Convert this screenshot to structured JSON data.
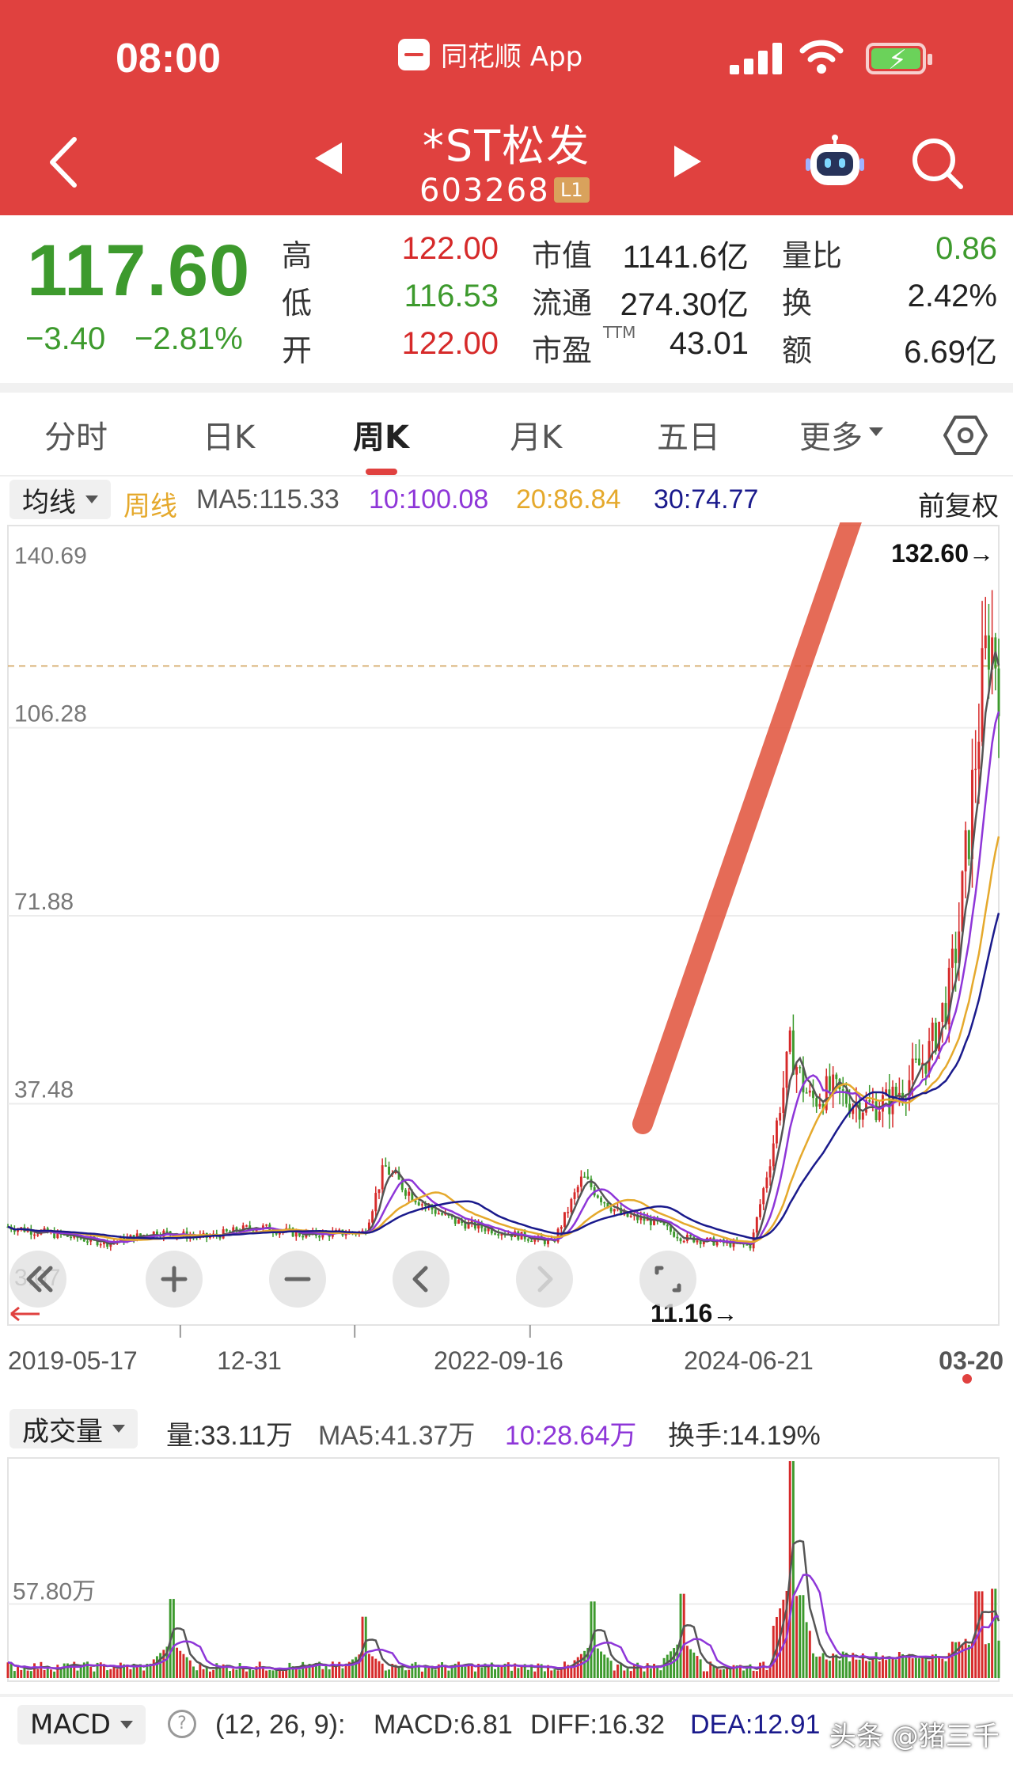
{
  "status": {
    "time": "08:00",
    "app": "同花顺 App"
  },
  "header": {
    "name": "*ST松发",
    "code": "603268",
    "level": "L1"
  },
  "quote": {
    "price": "117.60",
    "change": "−3.40",
    "change_pct": "−2.81%",
    "rows": [
      {
        "l1": "高",
        "v1": "122.00",
        "c1": "red",
        "l2": "市值",
        "v2": "1141.6亿",
        "l3": "量比",
        "v3": "0.86",
        "c3": "green"
      },
      {
        "l1": "低",
        "v1": "116.53",
        "c1": "green",
        "l2": "流通",
        "v2": "274.30亿",
        "l3": "换",
        "v3": "2.42%",
        "c3": "dark"
      },
      {
        "l1": "开",
        "v1": "122.00",
        "c1": "red",
        "l2": "市盈",
        "v2": "43.01",
        "l3": "额",
        "v3": "6.69亿",
        "c3": "dark"
      }
    ],
    "ttm": "TTM"
  },
  "tabs": [
    "分时",
    "日K",
    "周K",
    "月K",
    "五日",
    "更多"
  ],
  "active_tab": "周K",
  "kline_bar": {
    "dropdown": "均线",
    "period": "周线",
    "ma5": "MA5:115.33",
    "ma10": "10:100.08",
    "ma20": "20:86.84",
    "ma30": "30:74.77",
    "adjust": "前复权"
  },
  "volume_bar": {
    "dropdown": "成交量",
    "vol": "量:33.11万",
    "ma5": "MA5:41.37万",
    "ma10": "10:28.64万",
    "turnover": "换手:14.19%"
  },
  "macd_bar": {
    "dropdown": "MACD",
    "help": "?",
    "params": "(12, 26, 9):",
    "macd": "MACD:6.81",
    "diff": "DIFF:16.32",
    "dea": "DEA:12.91"
  },
  "watermark": "头条 @猪三千",
  "colors": {
    "up": "#d62a2a",
    "down": "#3d9a2d",
    "ma5": "#555555",
    "ma10": "#8e36d8",
    "ma20": "#e5a92c",
    "ma30": "#1a1a8c",
    "header": "#e0413f"
  },
  "chart_data": [
    {
      "type": "candlestick",
      "title": "",
      "y_ticks": [
        "140.69",
        "106.28",
        "71.88",
        "37.48",
        "3.07"
      ],
      "ylim": [
        3.07,
        140.69
      ],
      "x_ticks": [
        "2019-05-17",
        "12-31",
        "2022-09-16",
        "2024-06-21",
        "03-20"
      ],
      "annotations": {
        "high": "132.60→",
        "low": "11.16→"
      },
      "control_icons": [
        "rewind-icon",
        "zoom-in-icon",
        "zoom-out-icon",
        "chevron-left-icon",
        "chevron-right-icon",
        "fullscreen-icon"
      ],
      "price_profile": {
        "t": [
          0,
          0.05,
          0.1,
          0.15,
          0.2,
          0.25,
          0.3,
          0.36,
          0.38,
          0.4,
          0.42,
          0.45,
          0.5,
          0.55,
          0.58,
          0.6,
          0.62,
          0.65,
          0.68,
          0.72,
          0.75,
          0.77,
          0.79,
          0.8,
          0.81,
          0.83,
          0.85,
          0.87,
          0.89,
          0.91,
          0.93,
          0.95,
          0.96,
          0.97,
          0.98,
          0.99,
          1.0
        ],
        "close": [
          15,
          13.5,
          12,
          14,
          13,
          15,
          13.5,
          14,
          26,
          22,
          19,
          16,
          14,
          12,
          24,
          20,
          17,
          16,
          13,
          12,
          11.5,
          28,
          48,
          42,
          38,
          40,
          38,
          37,
          38,
          42,
          47,
          58,
          70,
          88,
          108,
          124,
          117.6
        ]
      }
    },
    {
      "type": "bar",
      "title": "",
      "y_ticks": [
        "57.80万"
      ],
      "spikes": [
        {
          "t": 0.165,
          "v": 62
        },
        {
          "t": 0.36,
          "v": 48
        },
        {
          "t": 0.59,
          "v": 60
        },
        {
          "t": 0.68,
          "v": 66
        },
        {
          "t": 0.79,
          "v": 170
        },
        {
          "t": 0.8,
          "v": 65
        },
        {
          "t": 0.98,
          "v": 68
        },
        {
          "t": 0.995,
          "v": 70
        }
      ],
      "base_level": 5,
      "ylim": [
        0,
        170
      ]
    }
  ]
}
